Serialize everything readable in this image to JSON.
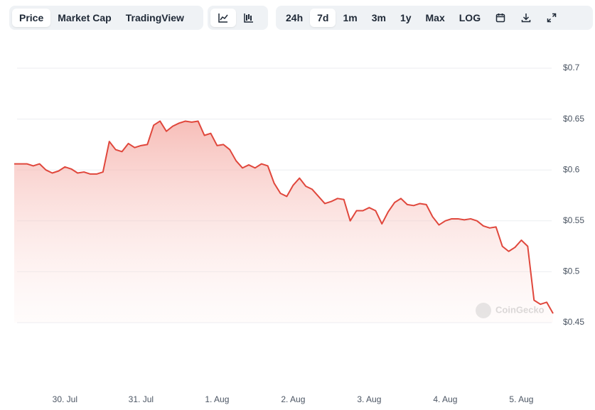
{
  "toolbar": {
    "views": [
      "Price",
      "Market Cap",
      "TradingView"
    ],
    "ranges": [
      "24h",
      "7d",
      "1m",
      "3m",
      "1y",
      "Max",
      "LOG"
    ]
  },
  "watermark": "CoinGecko",
  "chart_data": {
    "type": "line",
    "color": "#e0473c",
    "grid": true,
    "categories": [
      null,
      null,
      null,
      null,
      null,
      null,
      null,
      null,
      "30. Jul",
      null,
      null,
      null,
      null,
      null,
      null,
      null,
      null,
      null,
      null,
      null,
      "31. Jul",
      null,
      null,
      null,
      null,
      null,
      null,
      null,
      null,
      null,
      null,
      null,
      "1. Aug",
      null,
      null,
      null,
      null,
      null,
      null,
      null,
      null,
      null,
      null,
      null,
      "2. Aug",
      null,
      null,
      null,
      null,
      null,
      null,
      null,
      null,
      null,
      null,
      null,
      "3. Aug",
      null,
      null,
      null,
      null,
      null,
      null,
      null,
      null,
      null,
      null,
      null,
      "4. Aug",
      null,
      null,
      null,
      null,
      null,
      null,
      null,
      null,
      null,
      null,
      null,
      "5. Aug",
      null,
      null,
      null,
      null,
      null
    ],
    "values": [
      0.606,
      0.606,
      0.606,
      0.604,
      0.606,
      0.6,
      0.597,
      0.599,
      0.603,
      0.601,
      0.597,
      0.598,
      0.596,
      0.596,
      0.598,
      0.628,
      0.62,
      0.618,
      0.626,
      0.622,
      0.624,
      0.625,
      0.644,
      0.648,
      0.638,
      0.643,
      0.646,
      0.648,
      0.647,
      0.648,
      0.634,
      0.636,
      0.624,
      0.625,
      0.62,
      0.609,
      0.602,
      0.605,
      0.602,
      0.606,
      0.604,
      0.587,
      0.577,
      0.574,
      0.585,
      0.592,
      0.584,
      0.581,
      0.574,
      0.567,
      0.569,
      0.572,
      0.571,
      0.55,
      0.56,
      0.56,
      0.563,
      0.56,
      0.547,
      0.559,
      0.568,
      0.572,
      0.566,
      0.565,
      0.567,
      0.566,
      0.554,
      0.546,
      0.55,
      0.552,
      0.552,
      0.551,
      0.552,
      0.55,
      0.545,
      0.543,
      0.544,
      0.525,
      0.52,
      0.524,
      0.531,
      0.525,
      0.472,
      0.468,
      0.47,
      0.459
    ],
    "ylim": [
      0.45,
      0.7
    ],
    "yticks": [
      {
        "value": 0.45,
        "label": "$0.45"
      },
      {
        "value": 0.5,
        "label": "$0.5"
      },
      {
        "value": 0.55,
        "label": "$0.55"
      },
      {
        "value": 0.6,
        "label": "$0.6"
      },
      {
        "value": 0.65,
        "label": "$0.65"
      },
      {
        "value": 0.7,
        "label": "$0.7"
      }
    ]
  }
}
